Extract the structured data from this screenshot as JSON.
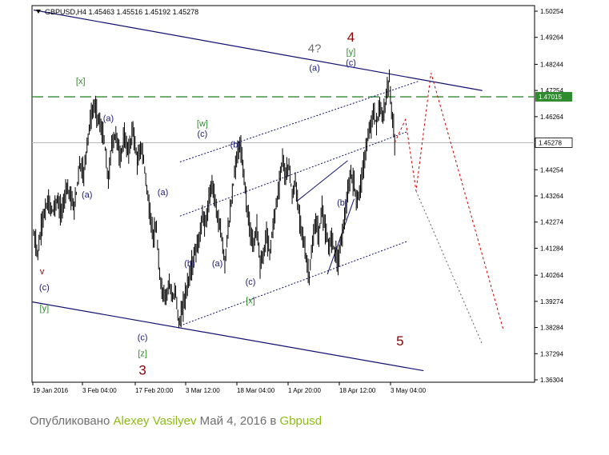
{
  "chart_data": {
    "type": "candlestick",
    "symbol_header": "GBPUSD,H4  1.45463 1.45516 1.45192 1.45278",
    "y_axis": {
      "min": 1.36304,
      "max": 1.50254,
      "ticks": [
        "1.50254",
        "1.49264",
        "1.48244",
        "1.47254",
        "1.46264",
        "1.45254",
        "1.44254",
        "1.43264",
        "1.42274",
        "1.41284",
        "1.40264",
        "1.39274",
        "1.38284",
        "1.37294",
        "1.36304"
      ]
    },
    "x_axis": {
      "tick_labels": [
        "19 Jan 2016",
        "3 Feb 04:00",
        "17 Feb 20:00",
        "3 Mar 12:00",
        "18 Mar 04:00",
        "1 Apr 20:00",
        "18 Apr 12:00",
        "3 May 04:00"
      ]
    },
    "horizontal_line": {
      "price": 1.47015,
      "label": "1.47015",
      "color": "#2e8b2e",
      "style": "dashed"
    },
    "current_price": {
      "price": 1.45278,
      "label": "1.45278"
    },
    "price_path": [
      [
        0,
        1.418
      ],
      [
        4,
        1.411
      ],
      [
        8,
        1.423
      ],
      [
        13,
        1.43
      ],
      [
        18,
        1.427
      ],
      [
        22,
        1.431
      ],
      [
        26,
        1.426
      ],
      [
        31,
        1.437
      ],
      [
        34,
        1.433
      ],
      [
        38,
        1.428
      ],
      [
        40,
        1.434
      ],
      [
        43,
        1.445
      ],
      [
        47,
        1.441
      ],
      [
        50,
        1.452
      ],
      [
        53,
        1.461
      ],
      [
        57,
        1.467
      ],
      [
        62,
        1.46
      ],
      [
        66,
        1.454
      ],
      [
        70,
        1.438
      ],
      [
        73,
        1.452
      ],
      [
        77,
        1.456
      ],
      [
        81,
        1.447
      ],
      [
        85,
        1.455
      ],
      [
        89,
        1.449
      ],
      [
        93,
        1.458
      ],
      [
        97,
        1.446
      ],
      [
        101,
        1.451
      ],
      [
        104,
        1.443
      ],
      [
        107,
        1.432
      ],
      [
        109,
        1.425
      ],
      [
        112,
        1.418
      ],
      [
        115,
        1.42
      ],
      [
        118,
        1.402
      ],
      [
        121,
        1.396
      ],
      [
        124,
        1.394
      ],
      [
        127,
        1.401
      ],
      [
        130,
        1.393
      ],
      [
        133,
        1.397
      ],
      [
        136,
        1.384
      ],
      [
        139,
        1.389
      ],
      [
        143,
        1.397
      ],
      [
        147,
        1.404
      ],
      [
        151,
        1.411
      ],
      [
        155,
        1.416
      ],
      [
        158,
        1.425
      ],
      [
        161,
        1.422
      ],
      [
        164,
        1.43
      ],
      [
        167,
        1.438
      ],
      [
        170,
        1.431
      ],
      [
        173,
        1.423
      ],
      [
        176,
        1.417
      ],
      [
        179,
        1.407
      ],
      [
        182,
        1.42
      ],
      [
        185,
        1.429
      ],
      [
        188,
        1.441
      ],
      [
        191,
        1.449
      ],
      [
        194,
        1.451
      ],
      [
        197,
        1.44
      ],
      [
        200,
        1.427
      ],
      [
        203,
        1.419
      ],
      [
        206,
        1.414
      ],
      [
        209,
        1.422
      ],
      [
        212,
        1.407
      ],
      [
        215,
        1.41
      ],
      [
        218,
        1.418
      ],
      [
        221,
        1.411
      ],
      [
        224,
        1.421
      ],
      [
        227,
        1.429
      ],
      [
        230,
        1.437
      ],
      [
        233,
        1.447
      ],
      [
        236,
        1.44
      ],
      [
        239,
        1.445
      ],
      [
        242,
        1.432
      ],
      [
        245,
        1.438
      ],
      [
        248,
        1.427
      ],
      [
        251,
        1.42
      ],
      [
        254,
        1.412
      ],
      [
        256,
        1.407
      ],
      [
        258,
        1.402
      ],
      [
        261,
        1.414
      ],
      [
        264,
        1.423
      ],
      [
        267,
        1.418
      ],
      [
        270,
        1.428
      ],
      [
        273,
        1.42
      ],
      [
        276,
        1.413
      ],
      [
        279,
        1.417
      ],
      [
        282,
        1.412
      ],
      [
        285,
        1.408
      ],
      [
        288,
        1.416
      ],
      [
        291,
        1.424
      ],
      [
        294,
        1.433
      ],
      [
        297,
        1.441
      ],
      [
        300,
        1.437
      ],
      [
        303,
        1.43
      ],
      [
        306,
        1.437
      ],
      [
        309,
        1.444
      ],
      [
        312,
        1.453
      ],
      [
        315,
        1.458
      ],
      [
        318,
        1.464
      ],
      [
        321,
        1.46
      ],
      [
        324,
        1.466
      ],
      [
        327,
        1.462
      ],
      [
        330,
        1.47
      ],
      [
        333,
        1.477
      ],
      [
        335,
        1.465
      ],
      [
        337,
        1.458
      ],
      [
        338,
        1.453
      ]
    ],
    "annotations": [
      {
        "text": "[x]",
        "price": 1.475,
        "i": 44,
        "color": "#2e8b2e"
      },
      {
        "text": "(a)",
        "price": 1.461,
        "i": 70,
        "color": "#1a1a80"
      },
      {
        "text": "(a)",
        "price": 1.432,
        "i": 50,
        "color": "#1a1a80"
      },
      {
        "text": "v",
        "price": 1.403,
        "i": 8,
        "color": "#8b0000"
      },
      {
        "text": "(c)",
        "price": 1.397,
        "i": 10,
        "color": "#1a1a80"
      },
      {
        "text": "[y]",
        "price": 1.389,
        "i": 10,
        "color": "#2e8b2e"
      },
      {
        "text": "(c)",
        "price": 1.378,
        "i": 102,
        "color": "#1a1a80"
      },
      {
        "text": "[z]",
        "price": 1.372,
        "i": 102,
        "color": "#2e8b2e"
      },
      {
        "text": "3",
        "price": 1.365,
        "i": 102,
        "color": "#8b0000"
      },
      {
        "text": "(a)",
        "price": 1.433,
        "i": 121,
        "color": "#1a1a80"
      },
      {
        "text": "(b)",
        "price": 1.406,
        "i": 146,
        "color": "#1a1a80"
      },
      {
        "text": "[w]",
        "price": 1.459,
        "i": 158,
        "color": "#2e8b2e"
      },
      {
        "text": "(c)",
        "price": 1.455,
        "i": 158,
        "color": "#1a1a80"
      },
      {
        "text": "(a)",
        "price": 1.406,
        "i": 172,
        "color": "#1a1a80"
      },
      {
        "text": "(b)",
        "price": 1.451,
        "i": 189,
        "color": "#1a1a80"
      },
      {
        "text": "(c)",
        "price": 1.399,
        "i": 203,
        "color": "#1a1a80"
      },
      {
        "text": "[x]",
        "price": 1.392,
        "i": 203,
        "color": "#2e8b2e"
      },
      {
        "text": "4?",
        "price": 1.487,
        "i": 263,
        "color": "#707070"
      },
      {
        "text": "(a)",
        "price": 1.48,
        "i": 263,
        "color": "#1a1a80"
      },
      {
        "text": "4",
        "price": 1.491,
        "i": 297,
        "color": "#8b0000"
      },
      {
        "text": "[y]",
        "price": 1.486,
        "i": 297,
        "color": "#2e8b2e"
      },
      {
        "text": "(c)",
        "price": 1.482,
        "i": 297,
        "color": "#1a1a80"
      },
      {
        "text": "(b)",
        "price": 1.429,
        "i": 289,
        "color": "#1a1a80"
      },
      {
        "text": "5",
        "price": 1.376,
        "i": 343,
        "color": "#8b0000"
      }
    ],
    "xlabel": "",
    "ylabel": ""
  },
  "footer": {
    "prefix": "Опубликовано ",
    "author": "Alexey Vasilyev",
    "date": " Май 4, 2016 в ",
    "symbol": "Gbpusd"
  }
}
